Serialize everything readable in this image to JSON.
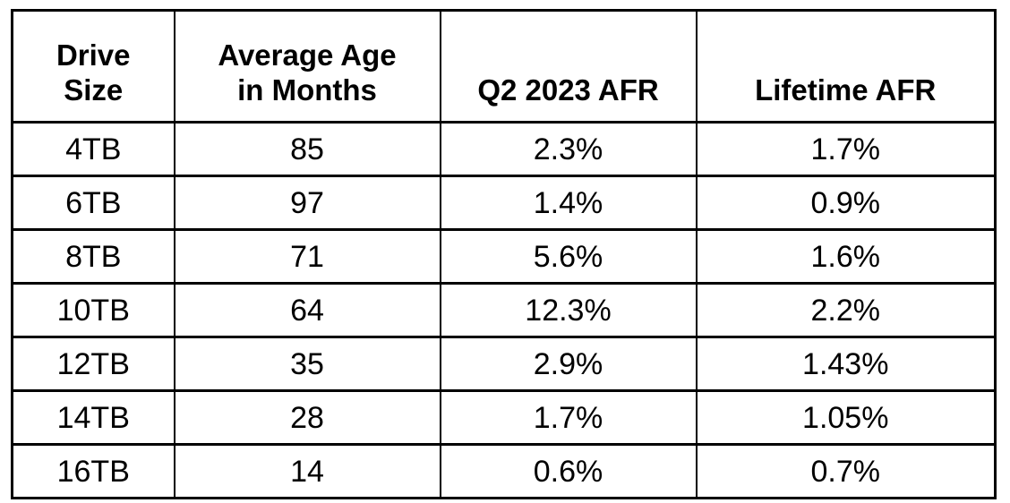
{
  "chart_data": {
    "type": "table",
    "title": "",
    "columns": [
      "Drive Size",
      "Average Age in Months",
      "Q2 2023 AFR",
      "Lifetime AFR"
    ],
    "rows": [
      [
        "4TB",
        "85",
        "2.3%",
        "1.7%"
      ],
      [
        "6TB",
        "97",
        "1.4%",
        "0.9%"
      ],
      [
        "8TB",
        "71",
        "5.6%",
        "1.6%"
      ],
      [
        "10TB",
        "64",
        "12.3%",
        "2.2%"
      ],
      [
        "12TB",
        "35",
        "2.9%",
        "1.43%"
      ],
      [
        "14TB",
        "28",
        "1.7%",
        "1.05%"
      ],
      [
        "16TB",
        "14",
        "0.6%",
        "0.7%"
      ]
    ]
  },
  "table": {
    "headers": [
      "Drive\nSize",
      "Average Age\nin Months",
      "Q2 2023 AFR",
      "Lifetime AFR"
    ]
  },
  "colors": {
    "border": "#000000",
    "text": "#000000",
    "background": "#ffffff"
  }
}
